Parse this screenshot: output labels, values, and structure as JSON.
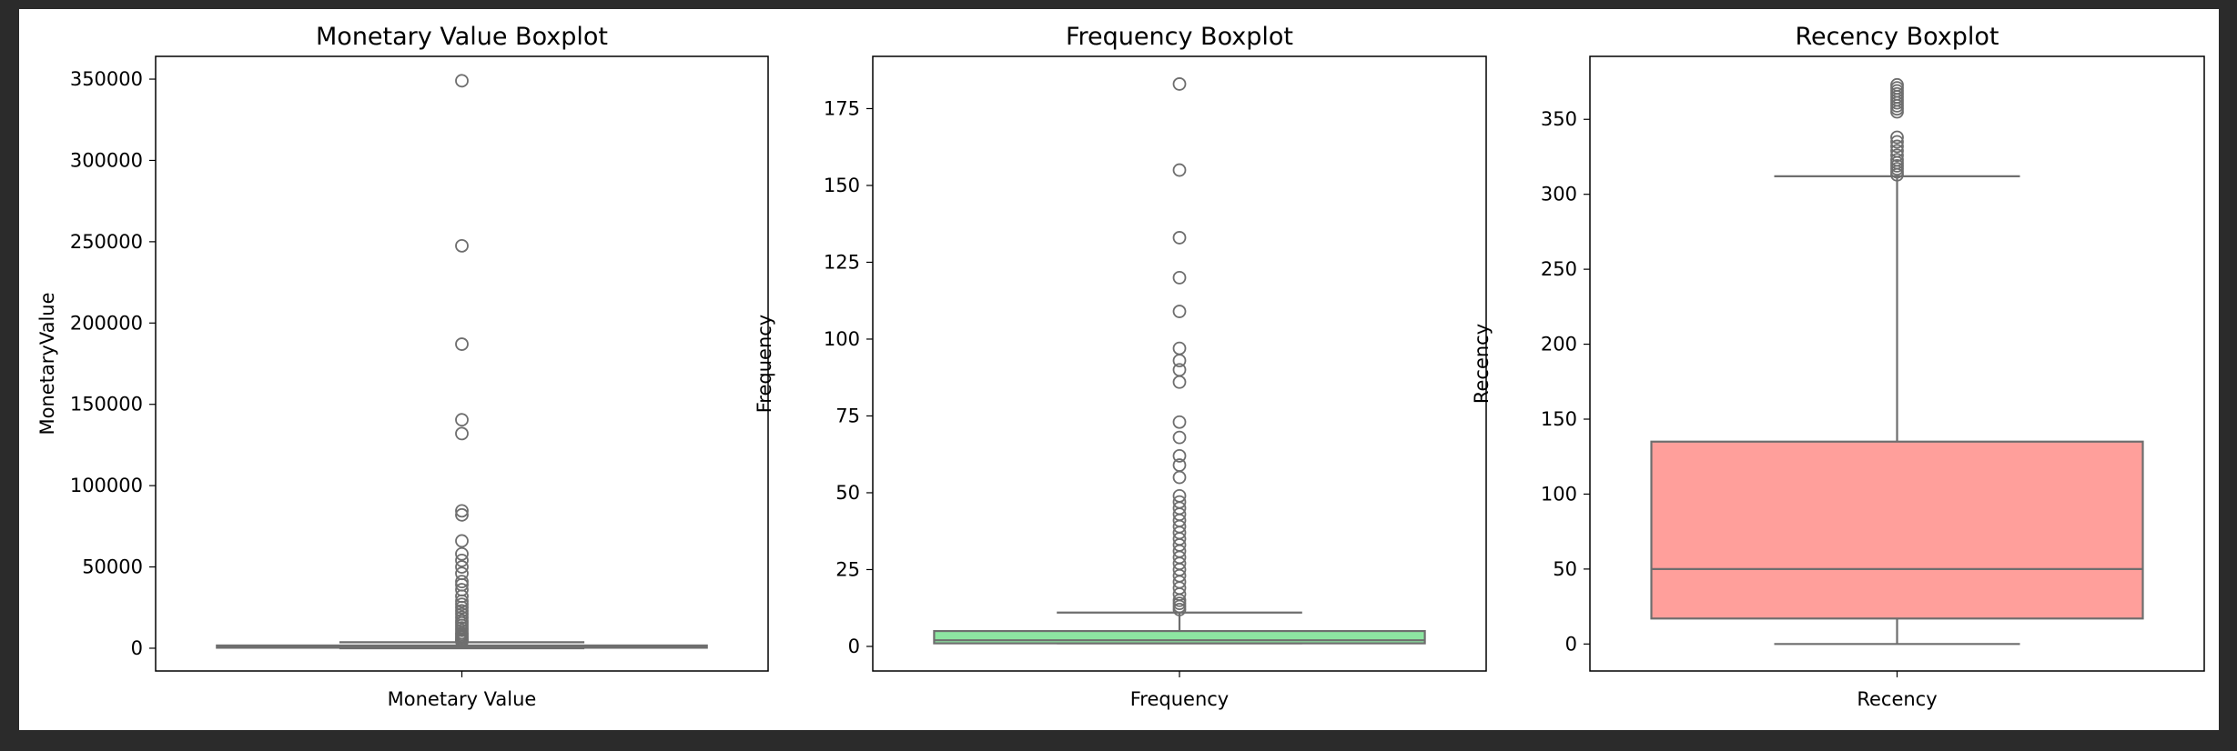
{
  "chart_data": [
    {
      "type": "boxplot",
      "title": "Monetary Value Boxplot",
      "xlabel": "Monetary Value",
      "ylabel": "MonetaryValue",
      "ylim": [
        -14000,
        364000
      ],
      "yticks": [
        0,
        50000,
        100000,
        150000,
        200000,
        250000,
        300000,
        350000
      ],
      "box": {
        "q1": 300,
        "median": 700,
        "q3": 1700,
        "whisker_low": 0,
        "whisker_high": 3700
      },
      "fill_color": "#a1c9f4",
      "outliers": [
        349000,
        247500,
        187000,
        140500,
        132000,
        84500,
        82000,
        66000,
        58000,
        54000,
        50000,
        46000,
        41000,
        39000,
        36000,
        32000,
        29000,
        27000,
        25000,
        23000,
        21000,
        19000,
        17000,
        15500,
        14000,
        12500,
        11000,
        9500,
        8500,
        7500,
        6500,
        5500,
        4800,
        4200
      ]
    },
    {
      "type": "boxplot",
      "title": "Frequency Boxplot",
      "xlabel": "Frequency",
      "ylabel": "Frequency",
      "ylim": [
        -8,
        192
      ],
      "yticks": [
        0,
        25,
        50,
        75,
        100,
        125,
        150,
        175
      ],
      "box": {
        "q1": 1,
        "median": 2,
        "q3": 5,
        "whisker_low": 1,
        "whisker_high": 11
      },
      "fill_color": "#8de5a1",
      "outliers": [
        183,
        155,
        133,
        120,
        109,
        97,
        93,
        90,
        86,
        73,
        68,
        62,
        59,
        55,
        49,
        47,
        45,
        43,
        41,
        39,
        37,
        35,
        33,
        31,
        29,
        27,
        25,
        23,
        21,
        19,
        17,
        15,
        14,
        13,
        12
      ]
    },
    {
      "type": "boxplot",
      "title": "Recency Boxplot",
      "xlabel": "Recency",
      "ylabel": "Recency",
      "ylim": [
        -18,
        392
      ],
      "yticks": [
        0,
        50,
        100,
        150,
        200,
        250,
        300,
        350
      ],
      "box": {
        "q1": 17,
        "median": 50,
        "q3": 135,
        "whisker_low": 0,
        "whisker_high": 312
      },
      "fill_color": "#ff9f9b",
      "outliers": [
        373,
        371,
        369,
        367,
        365,
        363,
        361,
        359,
        357,
        355,
        338,
        335,
        332,
        329,
        326,
        323,
        321,
        319,
        317,
        315,
        313
      ]
    }
  ]
}
